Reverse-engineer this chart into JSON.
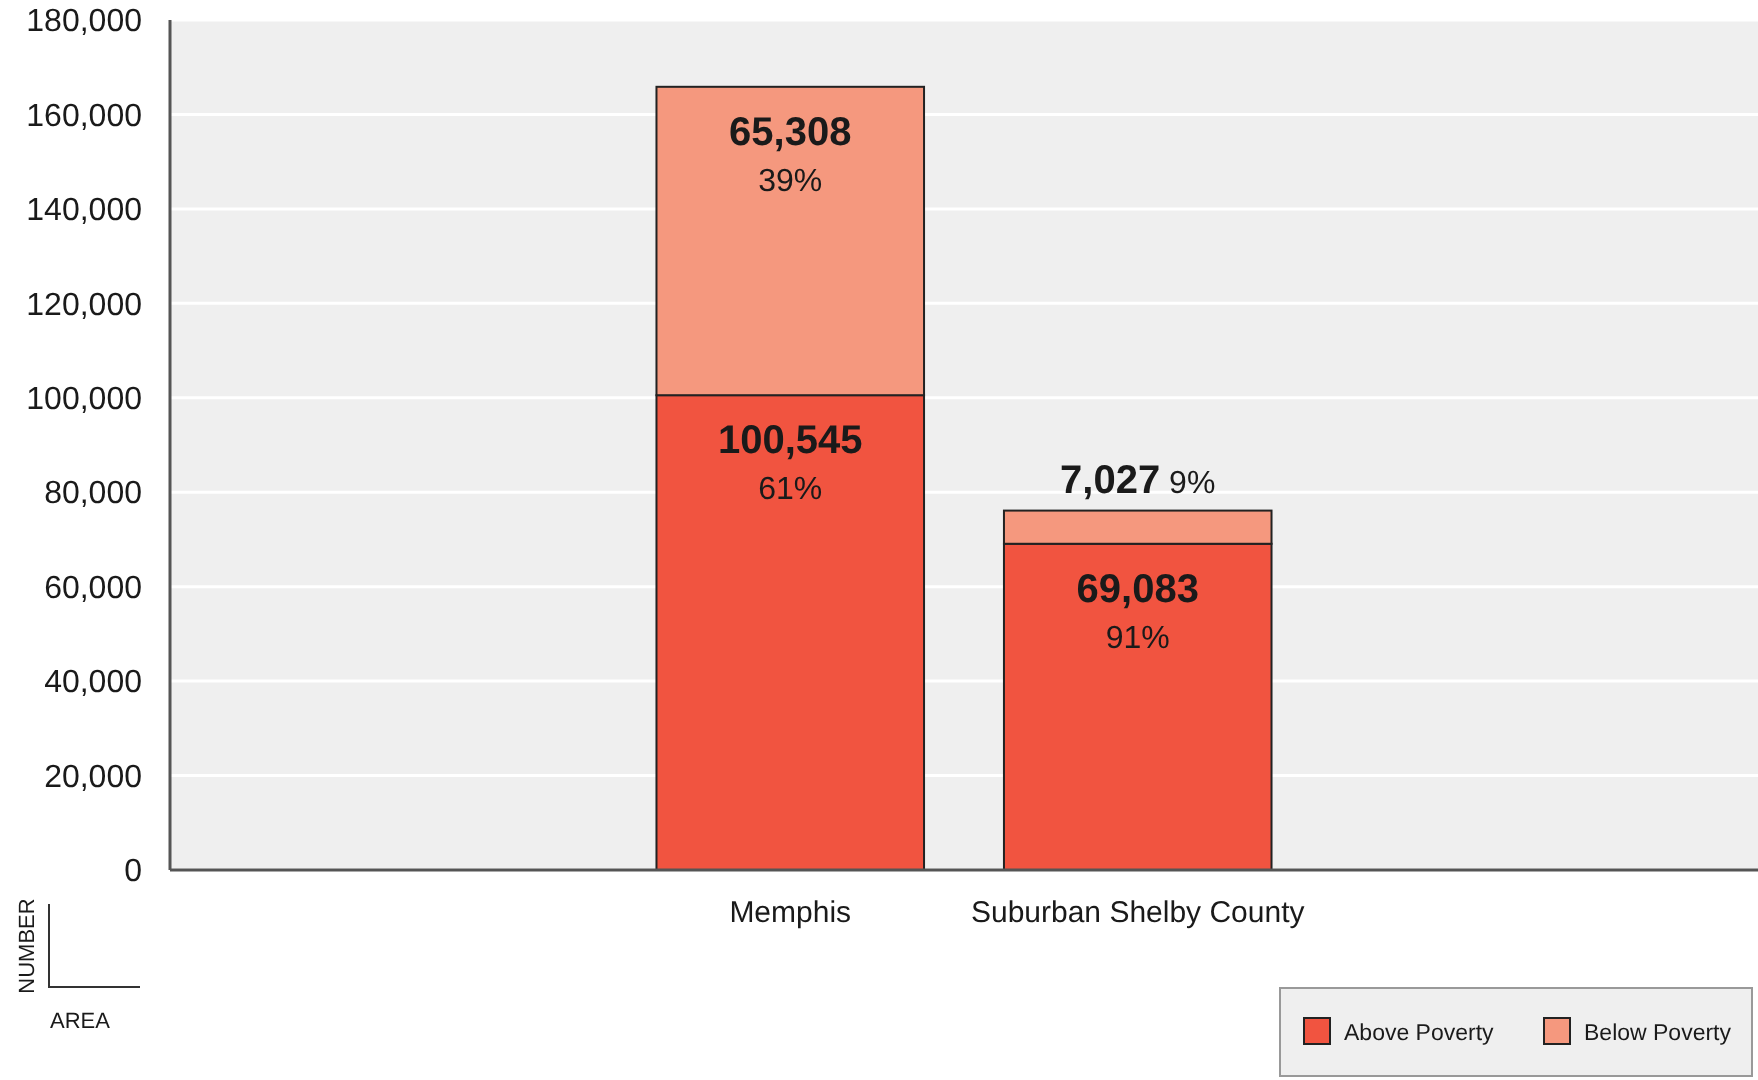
{
  "chart_data": {
    "type": "bar",
    "stacked": true,
    "categories": [
      "Memphis",
      "Suburban Shelby County"
    ],
    "series": [
      {
        "name": "Above Poverty",
        "color": "#f15440",
        "values": [
          100545,
          69083
        ],
        "value_labels": [
          "100,545 61%",
          "69,083 91%"
        ]
      },
      {
        "name": "Below Poverty",
        "color": "#f5987e",
        "values": [
          65308,
          7027
        ],
        "value_labels": [
          "65,308 39%",
          "7,027 9%"
        ]
      }
    ],
    "ylabel": "NUMBER",
    "annotations": [
      "AREA"
    ],
    "ylim": [
      0,
      180000
    ],
    "yticks": [
      {
        "value": 0,
        "label": "0"
      },
      {
        "value": 20000,
        "label": "20,000"
      },
      {
        "value": 40000,
        "label": "40,000"
      },
      {
        "value": 60000,
        "label": "60,000"
      },
      {
        "value": 80000,
        "label": "80,000"
      },
      {
        "value": 100000,
        "label": "100,000"
      },
      {
        "value": 120000,
        "label": "120,000"
      },
      {
        "value": 140000,
        "label": "140,000"
      },
      {
        "value": 160000,
        "label": "160,000"
      },
      {
        "value": 180000,
        "label": "180,000"
      }
    ],
    "grid": "y",
    "legend": "bottom right"
  }
}
